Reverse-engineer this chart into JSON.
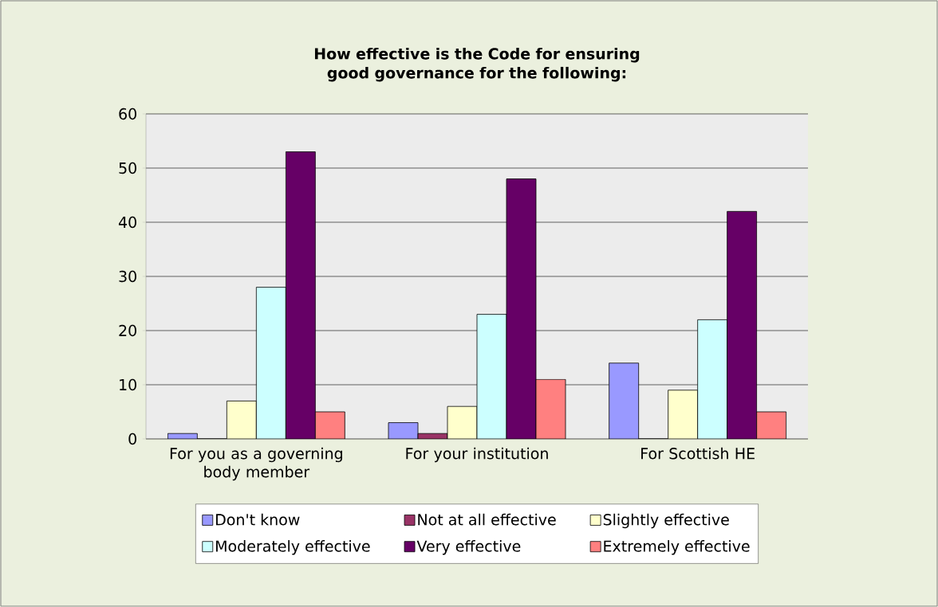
{
  "chart_data": {
    "type": "bar",
    "title": "How effective is the Code for ensuring good governance for the following:",
    "categories": [
      "For you as a governing body member",
      "For your institution",
      "For Scottish HE"
    ],
    "series": [
      {
        "name": "Don't know",
        "color": "#9999ff",
        "values": [
          1,
          3,
          14
        ]
      },
      {
        "name": "Not at all effective",
        "color": "#993366",
        "values": [
          0,
          1,
          0
        ]
      },
      {
        "name": "Slightly effective",
        "color": "#ffffcc",
        "values": [
          7,
          6,
          9
        ]
      },
      {
        "name": "Moderately effective",
        "color": "#ccffff",
        "values": [
          28,
          23,
          22
        ]
      },
      {
        "name": "Very effective",
        "color": "#660066",
        "values": [
          53,
          48,
          42
        ]
      },
      {
        "name": "Extremely effective",
        "color": "#ff8080",
        "values": [
          5,
          11,
          5
        ]
      }
    ],
    "ylim": [
      0,
      60
    ],
    "yticks": [
      0,
      10,
      20,
      30,
      40,
      50,
      60
    ],
    "grid": "y",
    "legend": "bottom"
  }
}
